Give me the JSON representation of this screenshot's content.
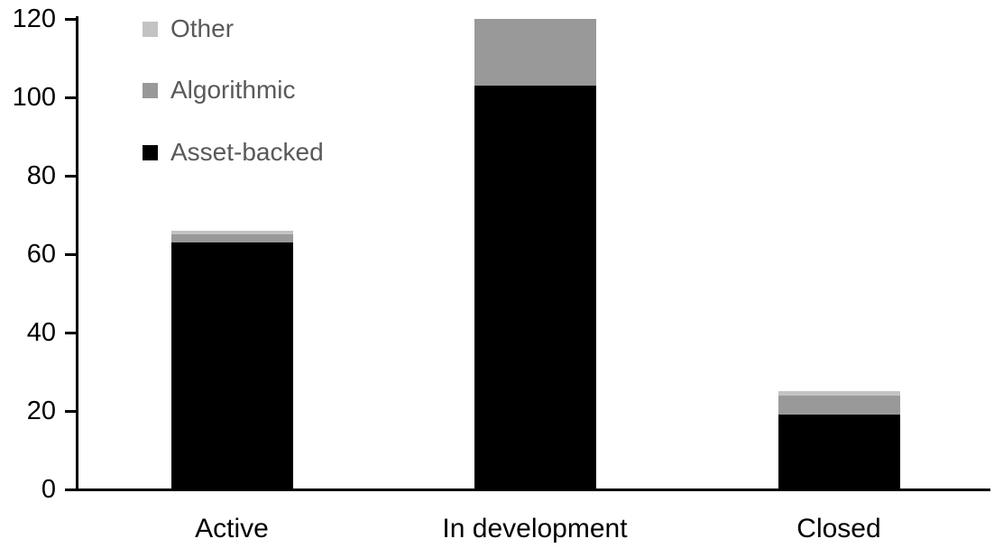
{
  "chart_data": {
    "type": "bar",
    "stacked": true,
    "title": "",
    "xlabel": "",
    "ylabel": "",
    "categories": [
      "Active",
      "In development",
      "Closed"
    ],
    "series": [
      {
        "name": "Asset-backed",
        "color": "#000000",
        "values": [
          63,
          103,
          19
        ]
      },
      {
        "name": "Algorithmic",
        "color": "#999999",
        "values": [
          2,
          17,
          5
        ]
      },
      {
        "name": "Other",
        "color": "#c3c3c3",
        "values": [
          1,
          0,
          1
        ]
      }
    ],
    "totals": [
      66,
      120,
      25
    ],
    "ylim": [
      0,
      120
    ],
    "yticks": [
      0,
      20,
      40,
      60,
      80,
      100,
      120
    ],
    "grid": false,
    "legend_position": "top-left-inside"
  },
  "legend": {
    "items": [
      {
        "label": "Other",
        "color": "#c3c3c3"
      },
      {
        "label": "Algorithmic",
        "color": "#999999"
      },
      {
        "label": "Asset-backed",
        "color": "#000000"
      }
    ]
  },
  "colors": {
    "background": "#ffffff",
    "axis": "#000000",
    "tick_label_text": "#000000",
    "category_label_text": "#000000",
    "legend_text": "#595959"
  }
}
